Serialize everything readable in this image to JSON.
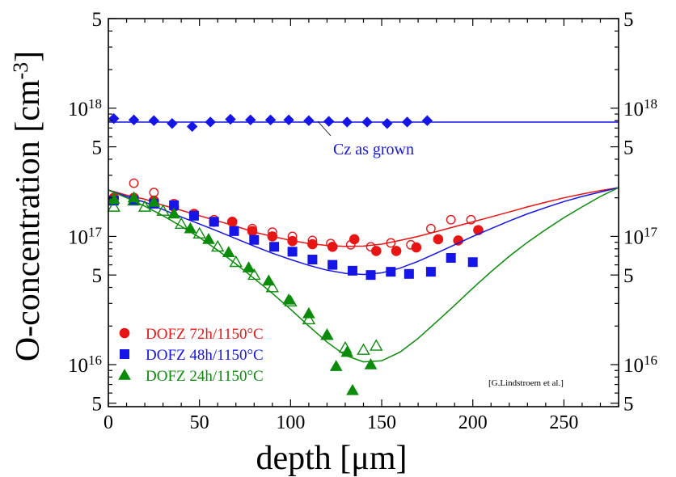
{
  "chart_data": {
    "type": "scatter",
    "title": "",
    "xlabel": "depth [μm]",
    "ylabel": "O-concentration [cm-3]",
    "xlim": [
      0,
      280
    ],
    "ylim_log": [
      4700000000000000.0,
      5e+18
    ],
    "y_scale": "log",
    "x_ticks": [
      0,
      50,
      100,
      150,
      200,
      250
    ],
    "x_tick_labels": [
      "0",
      "50",
      "100",
      "150",
      "200",
      "250"
    ],
    "y_tick_labels_left": [
      {
        "value": 5000000000000000.0,
        "base": "5",
        "exp": ""
      },
      {
        "value": 1e+16,
        "base": "10",
        "exp": "16"
      },
      {
        "value": 5e+16,
        "base": "5",
        "exp": ""
      },
      {
        "value": 1e+17,
        "base": "10",
        "exp": "17"
      },
      {
        "value": 5e+17,
        "base": "5",
        "exp": ""
      },
      {
        "value": 1e+18,
        "base": "10",
        "exp": "18"
      },
      {
        "value": 5e+18,
        "base": "5",
        "exp": ""
      }
    ],
    "annotation": "Cz as grown",
    "credit": "[G.Lindstroem et al.]",
    "series": [
      {
        "name": "Cz as grown",
        "color": "#1515e8",
        "marker": "diamond",
        "points": [
          [
            3,
            8.3e+17
          ],
          [
            14,
            8.1e+17
          ],
          [
            25,
            8e+17
          ],
          [
            35,
            7.6e+17
          ],
          [
            46,
            7.2e+17
          ],
          [
            56,
            7.8e+17
          ],
          [
            67,
            8.2e+17
          ],
          [
            78,
            8.1e+17
          ],
          [
            89,
            8.1e+17
          ],
          [
            99,
            8.1e+17
          ],
          [
            110,
            8e+17
          ],
          [
            121,
            7.9e+17
          ],
          [
            131,
            7.8e+17
          ],
          [
            142,
            7.8e+17
          ],
          [
            153,
            7.6e+17
          ],
          [
            164,
            7.8e+17
          ],
          [
            175,
            8e+17
          ]
        ],
        "fit": [
          [
            0,
            7.8e+17
          ],
          [
            280,
            7.8e+17
          ]
        ]
      },
      {
        "name": "DOFZ 72h/1150°C",
        "color": "#e81515",
        "marker": "circle",
        "points_filled": [
          [
            3,
            2e+17
          ],
          [
            14,
            2e+17
          ],
          [
            25,
            1.9e+17
          ],
          [
            36,
            1.7e+17
          ],
          [
            47,
            1.5e+17
          ],
          [
            58,
            1.3e+17
          ],
          [
            68,
            1.3e+17
          ],
          [
            79,
            1.1e+17
          ],
          [
            90,
            1e+17
          ],
          [
            101,
            9.2e+16
          ],
          [
            112,
            8.7e+16
          ],
          [
            123,
            8.3e+16
          ],
          [
            135,
            9.5e+16
          ],
          [
            147,
            7.7e+16
          ],
          [
            158,
            7.7e+16
          ],
          [
            169,
            8.2e+16
          ],
          [
            181,
            9.5e+16
          ],
          [
            192,
            9.3e+16
          ],
          [
            203,
            1.12e+17
          ]
        ],
        "points_open": [
          [
            14,
            2.6e+17
          ],
          [
            25,
            2.2e+17
          ],
          [
            36,
            1.8e+17
          ],
          [
            58,
            1.35e+17
          ],
          [
            79,
            1.15e+17
          ],
          [
            90,
            1.08e+17
          ],
          [
            101,
            1e+17
          ],
          [
            112,
            9.3e+16
          ],
          [
            122,
            8.8e+16
          ],
          [
            133,
            8.6e+16
          ],
          [
            144,
            8.3e+16
          ],
          [
            155,
            8.9e+16
          ],
          [
            166,
            8.6e+16
          ],
          [
            177,
            1.15e+17
          ],
          [
            188,
            1.35e+17
          ],
          [
            199,
            1.35e+17
          ]
        ],
        "fit": [
          [
            0,
            2.3e+17
          ],
          [
            10,
            2.1e+17
          ],
          [
            20,
            1.95e+17
          ],
          [
            30,
            1.75e+17
          ],
          [
            40,
            1.6e+17
          ],
          [
            50,
            1.45e+17
          ],
          [
            60,
            1.32e+17
          ],
          [
            70,
            1.2e+17
          ],
          [
            80,
            1.08e+17
          ],
          [
            90,
            1e+17
          ],
          [
            100,
            9.3e+16
          ],
          [
            110,
            8.8e+16
          ],
          [
            120,
            8.5e+16
          ],
          [
            130,
            8.35e+16
          ],
          [
            140,
            8.4e+16
          ],
          [
            150,
            8.7e+16
          ],
          [
            160,
            9.3e+16
          ],
          [
            170,
            1e+17
          ],
          [
            180,
            1.09e+17
          ],
          [
            190,
            1.19e+17
          ],
          [
            200,
            1.3e+17
          ],
          [
            210,
            1.42e+17
          ],
          [
            220,
            1.55e+17
          ],
          [
            230,
            1.7e+17
          ],
          [
            240,
            1.85e+17
          ],
          [
            250,
            2e+17
          ],
          [
            260,
            2.14e+17
          ],
          [
            270,
            2.28e+17
          ],
          [
            280,
            2.4e+17
          ]
        ]
      },
      {
        "name": "DOFZ 48h/1150°C",
        "color": "#1515e8",
        "marker": "square",
        "points": [
          [
            3,
            1.9e+17
          ],
          [
            14,
            1.9e+17
          ],
          [
            25,
            1.8e+17
          ],
          [
            36,
            1.75e+17
          ],
          [
            47,
            1.45e+17
          ],
          [
            58,
            1.3e+17
          ],
          [
            69,
            1.1e+17
          ],
          [
            80,
            9.4e+16
          ],
          [
            91,
            8.3e+16
          ],
          [
            101,
            7.6e+16
          ],
          [
            112,
            6.6e+16
          ],
          [
            123,
            6e+16
          ],
          [
            134,
            5.4e+16
          ],
          [
            144,
            5e+16
          ],
          [
            155,
            5.3e+16
          ],
          [
            165,
            5.1e+16
          ],
          [
            177,
            5.3e+16
          ],
          [
            188,
            6.8e+16
          ],
          [
            200,
            6.3e+16
          ]
        ],
        "fit": [
          [
            0,
            2.3e+17
          ],
          [
            10,
            2.05e+17
          ],
          [
            20,
            1.85e+17
          ],
          [
            30,
            1.62e+17
          ],
          [
            40,
            1.42e+17
          ],
          [
            50,
            1.25e+17
          ],
          [
            60,
            1.1e+17
          ],
          [
            70,
            9.6e+16
          ],
          [
            80,
            8.4e+16
          ],
          [
            90,
            7.4e+16
          ],
          [
            100,
            6.6e+16
          ],
          [
            110,
            5.95e+16
          ],
          [
            120,
            5.45e+16
          ],
          [
            130,
            5.15e+16
          ],
          [
            140,
            5.05e+16
          ],
          [
            150,
            5.2e+16
          ],
          [
            160,
            5.65e+16
          ],
          [
            170,
            6.4e+16
          ],
          [
            180,
            7.4e+16
          ],
          [
            190,
            8.6e+16
          ],
          [
            200,
            1e+17
          ],
          [
            210,
            1.15e+17
          ],
          [
            220,
            1.32e+17
          ],
          [
            230,
            1.5e+17
          ],
          [
            240,
            1.68e+17
          ],
          [
            250,
            1.87e+17
          ],
          [
            260,
            2.05e+17
          ],
          [
            270,
            2.22e+17
          ],
          [
            280,
            2.4e+17
          ]
        ]
      },
      {
        "name": "DOFZ 24h/1150°C",
        "color": "#0a8c0a",
        "marker": "triangle",
        "points_filled": [
          [
            3,
            1.95e+17
          ],
          [
            14,
            2e+17
          ],
          [
            25,
            1.85e+17
          ],
          [
            36,
            1.5e+17
          ],
          [
            45,
            1.15e+17
          ],
          [
            55,
            9.5e+16
          ],
          [
            66,
            7.5e+16
          ],
          [
            77,
            5.7e+16
          ],
          [
            88,
            4.5e+16
          ],
          [
            99,
            3.2e+16
          ],
          [
            110,
            2.5e+16
          ],
          [
            120,
            1.7e+16
          ],
          [
            131,
            1.25e+16
          ],
          [
            144,
            1e+16
          ],
          [
            125,
            9700000000000000.0
          ],
          [
            134,
            6300000000000000.0
          ]
        ],
        "points_open": [
          [
            3,
            1.7e+17
          ],
          [
            14,
            1.9e+17
          ],
          [
            20,
            1.7e+17
          ],
          [
            30,
            1.58e+17
          ],
          [
            40,
            1.25e+17
          ],
          [
            50,
            1.05e+17
          ],
          [
            60,
            8.3e+16
          ],
          [
            70,
            6.3e+16
          ],
          [
            80,
            5e+16
          ],
          [
            90,
            4e+16
          ],
          [
            100,
            3.1e+16
          ],
          [
            110,
            2.25e+16
          ],
          [
            120,
            1.7e+16
          ],
          [
            130,
            1.35e+16
          ],
          [
            140,
            1.3e+16
          ],
          [
            147,
            1.4e+16
          ]
        ],
        "fit": [
          [
            0,
            2.3e+17
          ],
          [
            10,
            2e+17
          ],
          [
            20,
            1.72e+17
          ],
          [
            30,
            1.45e+17
          ],
          [
            40,
            1.2e+17
          ],
          [
            50,
            9.8e+16
          ],
          [
            60,
            7.8e+16
          ],
          [
            70,
            6.1e+16
          ],
          [
            80,
            4.7e+16
          ],
          [
            90,
            3.6e+16
          ],
          [
            100,
            2.7e+16
          ],
          [
            110,
            2e+16
          ],
          [
            120,
            1.5e+16
          ],
          [
            130,
            1.18e+16
          ],
          [
            140,
            1.05e+16
          ],
          [
            150,
            1.07e+16
          ],
          [
            160,
            1.25e+16
          ],
          [
            170,
            1.6e+16
          ],
          [
            180,
            2.15e+16
          ],
          [
            190,
            2.9e+16
          ],
          [
            200,
            3.95e+16
          ],
          [
            210,
            5.3e+16
          ],
          [
            220,
            7e+16
          ],
          [
            230,
            9e+16
          ],
          [
            240,
            1.13e+17
          ],
          [
            250,
            1.4e+17
          ],
          [
            260,
            1.7e+17
          ],
          [
            270,
            2.05e+17
          ],
          [
            280,
            2.4e+17
          ]
        ]
      }
    ],
    "legend": [
      {
        "label": "DOFZ 72h/1150°C",
        "color": "#e81515",
        "marker": "circle"
      },
      {
        "label": "DOFZ 48h/1150°C",
        "color": "#1515e8",
        "marker": "square"
      },
      {
        "label": "DOFZ 24h/1150°C",
        "color": "#0a8c0a",
        "marker": "triangle"
      }
    ]
  }
}
